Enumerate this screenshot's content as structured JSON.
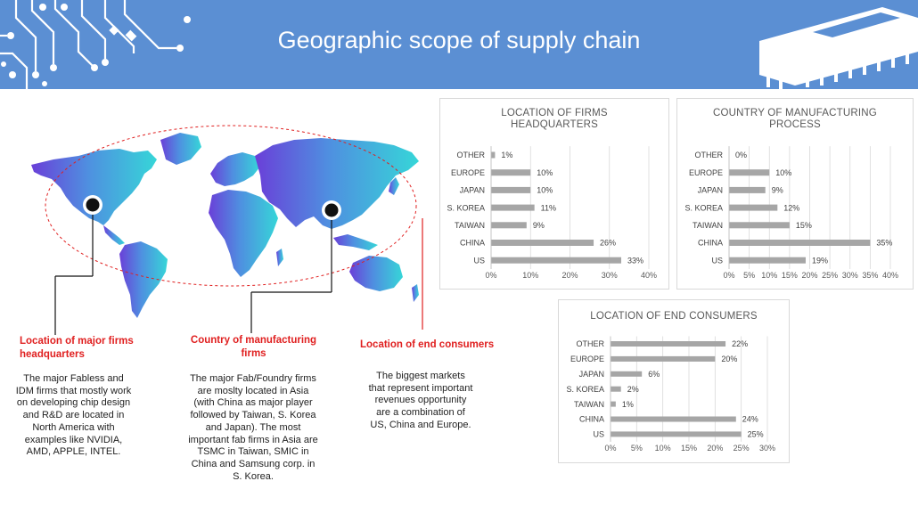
{
  "header": {
    "title": "Geographic scope of supply chain"
  },
  "callouts": [
    {
      "label": "Location of major firms headquarters",
      "description": "The major Fabless and IDM firms that mostly work on developing chip design and R&D are located in North America with examples like NVIDIA, AMD, APPLE, INTEL."
    },
    {
      "label": "Country of manufacturing firms",
      "description": "The major Fab/Foundry firms are moslty located in Asia (with China as major player followed by Taiwan, S. Korea and Japan). The most important fab firms in Asia are TSMC in Taiwan, SMIC in China and Samsung corp. in S. Korea."
    },
    {
      "label": "Location of end consumers",
      "description": "The biggest markets that represent important revenues opportunity are a combination of US, China and Europe."
    }
  ],
  "colors": {
    "banner": "#5b8fd3",
    "accent_red": "#e02020",
    "bar": "#a6a6a6",
    "map_start": "#6a3fd8",
    "map_end": "#36d6d8"
  },
  "chart_data": [
    {
      "type": "bar",
      "orientation": "horizontal",
      "title": "LOCATION OF FIRMS HEADQUARTERS",
      "categories": [
        "OTHER",
        "EUROPE",
        "JAPAN",
        "S. KOREA",
        "TAIWAN",
        "CHINA",
        "US"
      ],
      "values": [
        1,
        10,
        10,
        11,
        9,
        26,
        33
      ],
      "value_labels": [
        "1%",
        "10%",
        "10%",
        "11%",
        "9%",
        "26%",
        "33%"
      ],
      "xticks": [
        "0%",
        "10%",
        "20%",
        "30%",
        "40%"
      ],
      "xlim": [
        0,
        40
      ],
      "grid": true
    },
    {
      "type": "bar",
      "orientation": "horizontal",
      "title": "COUNTRY OF MANUFACTURING PROCESS",
      "categories": [
        "OTHER",
        "EUROPE",
        "JAPAN",
        "S. KOREA",
        "TAIWAN",
        "CHINA",
        "US"
      ],
      "values": [
        0,
        10,
        9,
        12,
        15,
        35,
        19
      ],
      "value_labels": [
        "0%",
        "10%",
        "9%",
        "12%",
        "15%",
        "35%",
        "19%"
      ],
      "xticks": [
        "0%",
        "5%",
        "10%",
        "15%",
        "20%",
        "25%",
        "30%",
        "35%",
        "40%"
      ],
      "xlim": [
        0,
        40
      ],
      "grid": true
    },
    {
      "type": "bar",
      "orientation": "horizontal",
      "title": "LOCATION OF END CONSUMERS",
      "categories": [
        "OTHER",
        "EUROPE",
        "JAPAN",
        "S. KOREA",
        "TAIWAN",
        "CHINA",
        "US"
      ],
      "values": [
        22,
        20,
        6,
        2,
        1,
        24,
        25
      ],
      "value_labels": [
        "22%",
        "20%",
        "6%",
        "2%",
        "1%",
        "24%",
        "25%"
      ],
      "xticks": [
        "0%",
        "5%",
        "10%",
        "15%",
        "20%",
        "25%",
        "30%"
      ],
      "xlim": [
        0,
        30
      ],
      "grid": true
    }
  ]
}
